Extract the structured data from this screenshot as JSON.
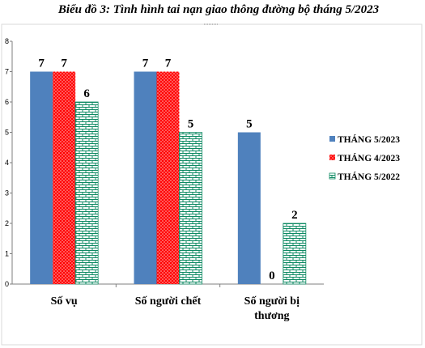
{
  "chart_data": {
    "type": "bar",
    "title": "Biểu đồ 3: Tình hình tai nạn giao thông đường bộ tháng 5/2023",
    "categories": [
      [
        "Số vụ"
      ],
      [
        "Số người chết"
      ],
      [
        "Số người bị",
        "thương"
      ]
    ],
    "series": [
      {
        "name": "THÁNG 5/2023",
        "values": [
          7,
          7,
          5
        ],
        "color": "#4F81BD",
        "pattern": "solid"
      },
      {
        "name": "THÁNG 4/2023",
        "values": [
          7,
          7,
          0
        ],
        "color": "#FF0000",
        "pattern": "dotted"
      },
      {
        "name": "THÁNG 5/2022",
        "values": [
          6,
          5,
          2
        ],
        "color": "#0E8A63",
        "pattern": "brick"
      }
    ],
    "ylim": [
      0,
      8
    ],
    "yticks": [
      0,
      1,
      2,
      3,
      4,
      5,
      6,
      7,
      8
    ],
    "grid": false,
    "legend": "right",
    "data_labels": true
  }
}
